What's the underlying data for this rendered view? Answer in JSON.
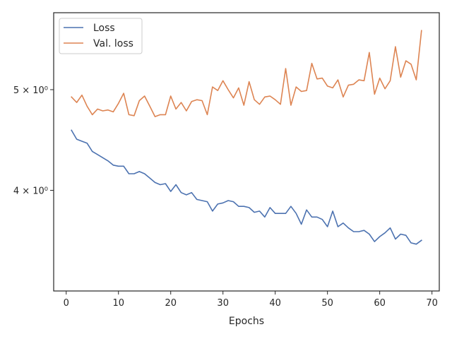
{
  "chart_data": {
    "type": "line",
    "title": "",
    "xlabel": "Epochs",
    "ylabel": "",
    "y_scale": "log",
    "xlim": [
      -2.4,
      71.4
    ],
    "ylim": [
      3.2,
      5.93
    ],
    "x_ticks": [
      0,
      10,
      20,
      30,
      40,
      50,
      60,
      70
    ],
    "x_tick_labels": [
      "0",
      "10",
      "20",
      "30",
      "40",
      "50",
      "60",
      "70"
    ],
    "y_ticks": [
      4,
      5
    ],
    "y_tick_labels": [
      "4 × 10⁰",
      "5 × 10⁰"
    ],
    "grid": false,
    "legend_position": "top-left",
    "series": [
      {
        "name": "Loss",
        "color": "#4c72b0",
        "x": [
          1,
          2,
          3,
          4,
          5,
          6,
          7,
          8,
          9,
          10,
          11,
          12,
          13,
          14,
          15,
          16,
          17,
          18,
          19,
          20,
          21,
          22,
          23,
          24,
          25,
          26,
          27,
          28,
          29,
          30,
          31,
          32,
          33,
          34,
          35,
          36,
          37,
          38,
          39,
          40,
          41,
          42,
          43,
          44,
          45,
          46,
          47,
          48,
          49,
          50,
          51,
          52,
          53,
          54,
          55,
          56,
          57,
          58,
          59,
          60,
          61,
          62,
          63,
          64,
          65,
          66,
          67,
          68
        ],
        "values": [
          4.57,
          4.48,
          4.46,
          4.44,
          4.36,
          4.33,
          4.3,
          4.27,
          4.23,
          4.22,
          4.22,
          4.15,
          4.15,
          4.17,
          4.15,
          4.11,
          4.07,
          4.05,
          4.06,
          3.99,
          4.05,
          3.98,
          3.96,
          3.98,
          3.92,
          3.91,
          3.9,
          3.82,
          3.88,
          3.89,
          3.91,
          3.9,
          3.86,
          3.86,
          3.85,
          3.81,
          3.82,
          3.77,
          3.85,
          3.8,
          3.8,
          3.8,
          3.86,
          3.8,
          3.71,
          3.83,
          3.77,
          3.77,
          3.75,
          3.69,
          3.82,
          3.69,
          3.72,
          3.68,
          3.65,
          3.65,
          3.66,
          3.63,
          3.57,
          3.61,
          3.64,
          3.68,
          3.59,
          3.63,
          3.62,
          3.56,
          3.55,
          3.58
        ]
      },
      {
        "name": "Val. loss",
        "color": "#dd8452",
        "x": [
          1,
          2,
          3,
          4,
          5,
          6,
          7,
          8,
          9,
          10,
          11,
          12,
          13,
          14,
          15,
          16,
          17,
          18,
          19,
          20,
          21,
          22,
          23,
          24,
          25,
          26,
          27,
          28,
          29,
          30,
          31,
          32,
          33,
          34,
          35,
          36,
          37,
          38,
          39,
          40,
          41,
          42,
          43,
          44,
          45,
          46,
          47,
          48,
          49,
          50,
          51,
          52,
          53,
          54,
          55,
          56,
          57,
          58,
          59,
          60,
          61,
          62,
          63,
          64,
          65,
          66,
          67,
          68
        ],
        "values": [
          4.92,
          4.86,
          4.94,
          4.82,
          4.73,
          4.79,
          4.77,
          4.78,
          4.76,
          4.85,
          4.96,
          4.73,
          4.72,
          4.88,
          4.93,
          4.82,
          4.71,
          4.73,
          4.73,
          4.93,
          4.79,
          4.86,
          4.77,
          4.87,
          4.89,
          4.88,
          4.73,
          5.03,
          4.99,
          5.1,
          5.0,
          4.91,
          5.02,
          4.83,
          5.09,
          4.89,
          4.84,
          4.92,
          4.93,
          4.89,
          4.84,
          5.24,
          4.83,
          5.03,
          4.98,
          4.99,
          5.3,
          5.12,
          5.13,
          5.04,
          5.02,
          5.11,
          4.92,
          5.05,
          5.06,
          5.11,
          5.1,
          5.43,
          4.95,
          5.13,
          5.01,
          5.1,
          5.5,
          5.14,
          5.33,
          5.29,
          5.11,
          5.7
        ]
      }
    ]
  }
}
